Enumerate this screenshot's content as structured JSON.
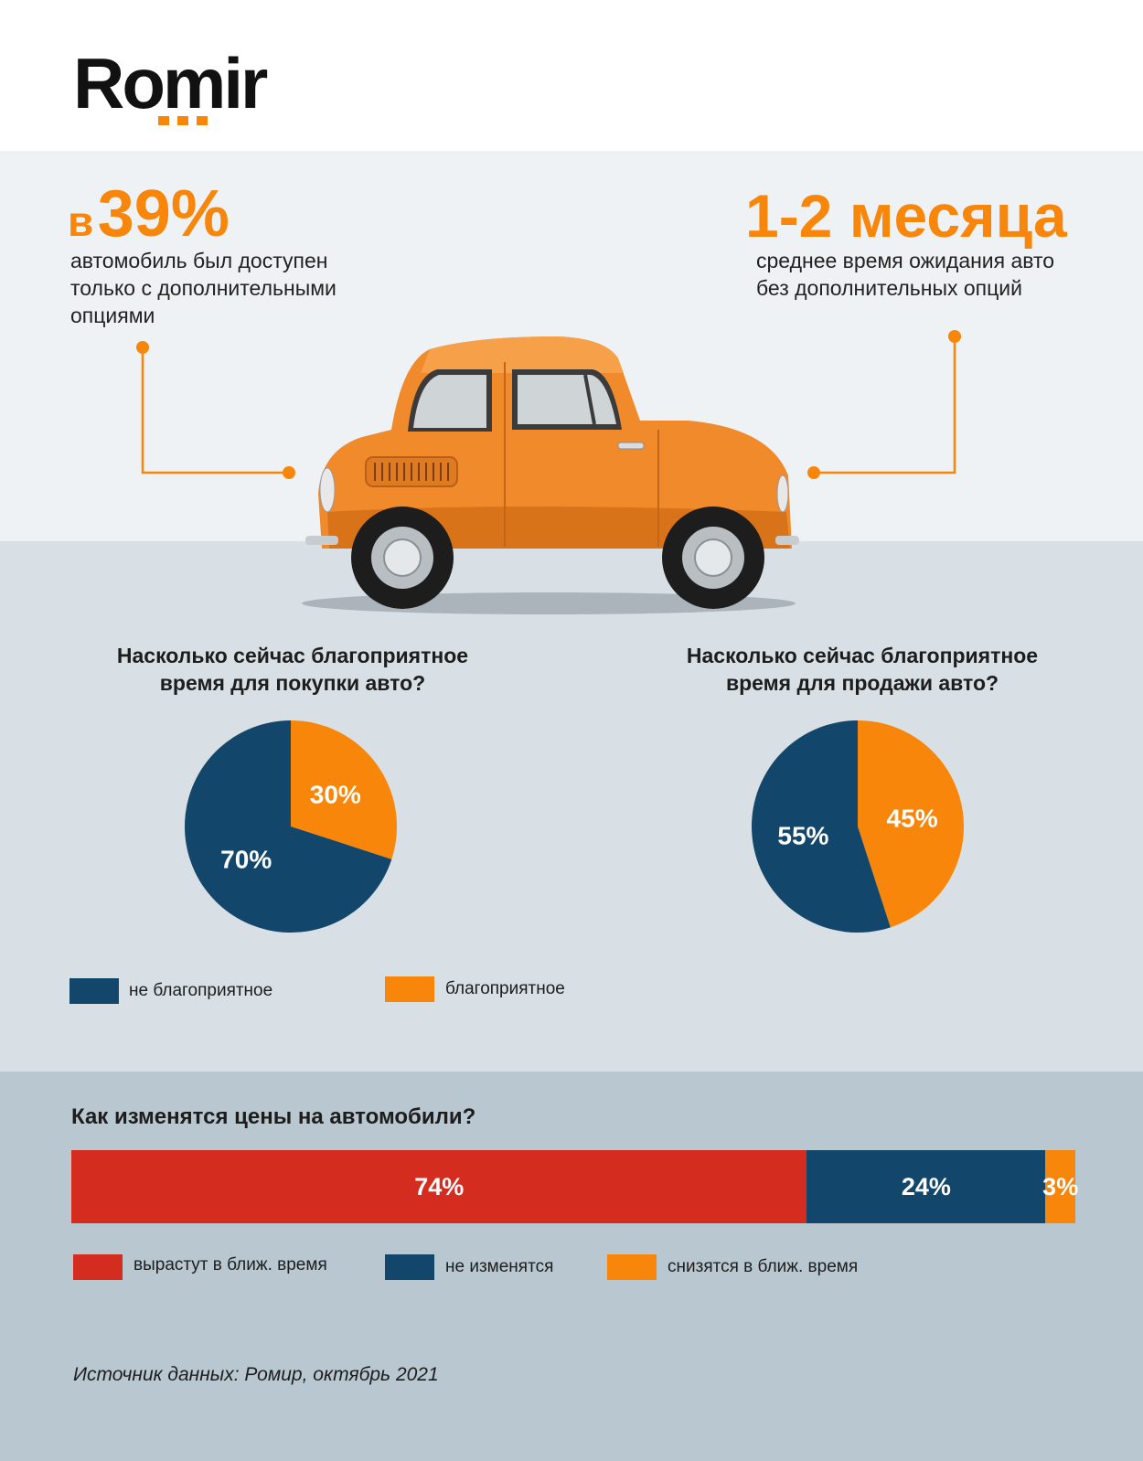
{
  "brand": {
    "name": "Romir",
    "accent": "#f7860a"
  },
  "stats": [
    {
      "prefix": "в",
      "value": "39%",
      "description": [
        "автомобиль был доступен",
        "только с дополнительными",
        "опциями"
      ]
    },
    {
      "value": "1-2 месяца",
      "description": [
        "среднее время ожидания авто",
        "без дополнительных опций"
      ]
    }
  ],
  "chart_data": [
    {
      "type": "pie",
      "title": [
        "Насколько сейчас благоприятное",
        "время для покупки авто?"
      ],
      "slices": [
        {
          "label": "благоприятное",
          "value": 30,
          "color": "#f7860a"
        },
        {
          "label": "не благоприятное",
          "value": 70,
          "color": "#12466a"
        }
      ]
    },
    {
      "type": "pie",
      "title": [
        "Насколько сейчас благоприятное",
        "время для продажи авто?"
      ],
      "slices": [
        {
          "label": "благоприятное",
          "value": 45,
          "color": "#f7860a"
        },
        {
          "label": "не благоприятное",
          "value": 55,
          "color": "#12466a"
        }
      ]
    },
    {
      "type": "bar",
      "orientation": "horizontal-stacked",
      "title": "Как изменятся цены на автомобили?",
      "series": [
        {
          "name": "вырастут в ближ. время",
          "value": 74,
          "color": "#d42d20"
        },
        {
          "name": "не изменятся",
          "value": 24,
          "color": "#12466a"
        },
        {
          "name": "снизятся в ближ. время",
          "value": 3,
          "color": "#f7860a"
        }
      ]
    }
  ],
  "pie_legend": [
    {
      "label": "не благоприятное",
      "color": "#12466a"
    },
    {
      "label": "благоприятное",
      "color": "#f7860a"
    }
  ],
  "source": "Источник данных: Ромир, октябрь 2021"
}
